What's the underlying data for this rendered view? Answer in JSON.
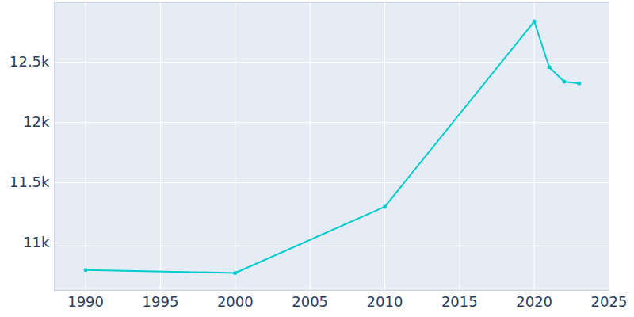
{
  "chart_data": {
    "type": "line",
    "x": [
      1990,
      2000,
      2010,
      2020,
      2021,
      2022,
      2023
    ],
    "values": [
      10775,
      10750,
      11300,
      12840,
      12460,
      12340,
      12325
    ],
    "color": "#00cccc",
    "marker": "circle",
    "xlim": [
      1987.9,
      2025
    ],
    "xticks": [
      1990,
      1995,
      2000,
      2005,
      2010,
      2015,
      2020,
      2025
    ],
    "ylim": [
      10605,
      12995
    ],
    "yticks": [
      {
        "value": 11000,
        "label": "11k"
      },
      {
        "value": 11500,
        "label": "11.5k"
      },
      {
        "value": 12000,
        "label": "12k"
      },
      {
        "value": 12500,
        "label": "12.5k"
      }
    ],
    "grid": true
  }
}
